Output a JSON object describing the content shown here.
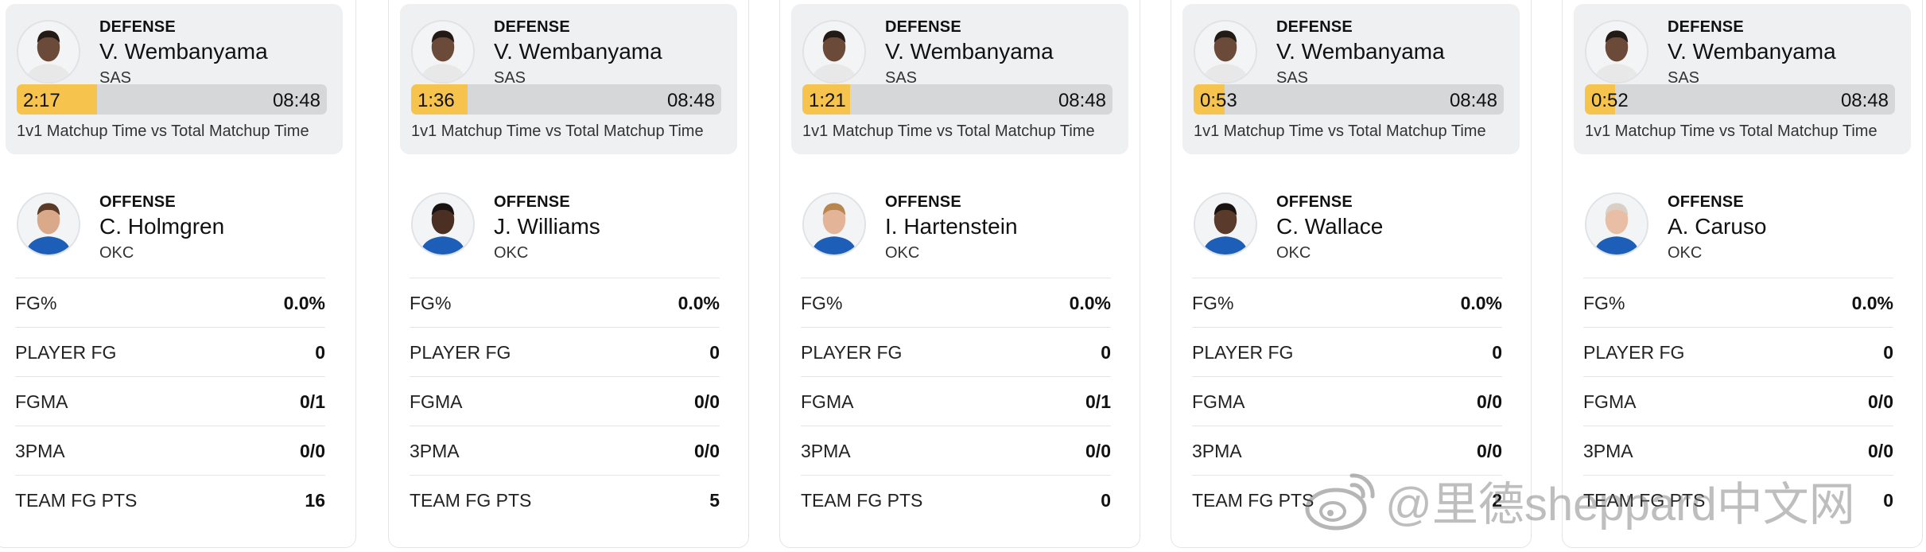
{
  "common": {
    "defense_label": "DEFENSE",
    "offense_label": "OFFENSE",
    "caption": "1v1 Matchup Time vs Total Matchup Time",
    "total_time": "08:48"
  },
  "cards": [
    {
      "defense": {
        "name": "V. Wembanyama",
        "team": "SAS",
        "matchup_time": "2:17",
        "fraction": 0.259
      },
      "offense": {
        "name": "C. Holmgren",
        "team": "OKC"
      },
      "stats": [
        {
          "label": "FG%",
          "value": "0.0%"
        },
        {
          "label": "PLAYER FG",
          "value": "0"
        },
        {
          "label": "FGMA",
          "value": "0/1"
        },
        {
          "label": "3PMA",
          "value": "0/0"
        },
        {
          "label": "TEAM FG PTS",
          "value": "16"
        }
      ]
    },
    {
      "defense": {
        "name": "V. Wembanyama",
        "team": "SAS",
        "matchup_time": "1:36",
        "fraction": 0.182
      },
      "offense": {
        "name": "J. Williams",
        "team": "OKC"
      },
      "stats": [
        {
          "label": "FG%",
          "value": "0.0%"
        },
        {
          "label": "PLAYER FG",
          "value": "0"
        },
        {
          "label": "FGMA",
          "value": "0/0"
        },
        {
          "label": "3PMA",
          "value": "0/0"
        },
        {
          "label": "TEAM FG PTS",
          "value": "5"
        }
      ]
    },
    {
      "defense": {
        "name": "V. Wembanyama",
        "team": "SAS",
        "matchup_time": "1:21",
        "fraction": 0.153
      },
      "offense": {
        "name": "I. Hartenstein",
        "team": "OKC"
      },
      "stats": [
        {
          "label": "FG%",
          "value": "0.0%"
        },
        {
          "label": "PLAYER FG",
          "value": "0"
        },
        {
          "label": "FGMA",
          "value": "0/1"
        },
        {
          "label": "3PMA",
          "value": "0/0"
        },
        {
          "label": "TEAM FG PTS",
          "value": "0"
        }
      ]
    },
    {
      "defense": {
        "name": "V. Wembanyama",
        "team": "SAS",
        "matchup_time": "0:53",
        "fraction": 0.1
      },
      "offense": {
        "name": "C. Wallace",
        "team": "OKC"
      },
      "stats": [
        {
          "label": "FG%",
          "value": "0.0%"
        },
        {
          "label": "PLAYER FG",
          "value": "0"
        },
        {
          "label": "FGMA",
          "value": "0/0"
        },
        {
          "label": "3PMA",
          "value": "0/0"
        },
        {
          "label": "TEAM FG PTS",
          "value": "2"
        }
      ]
    },
    {
      "defense": {
        "name": "V. Wembanyama",
        "team": "SAS",
        "matchup_time": "0:52",
        "fraction": 0.098
      },
      "offense": {
        "name": "A. Caruso",
        "team": "OKC"
      },
      "stats": [
        {
          "label": "FG%",
          "value": "0.0%"
        },
        {
          "label": "PLAYER FG",
          "value": "0"
        },
        {
          "label": "FGMA",
          "value": "0/0"
        },
        {
          "label": "3PMA",
          "value": "0/0"
        },
        {
          "label": "TEAM FG PTS",
          "value": "0"
        }
      ]
    }
  ],
  "watermark": {
    "text": "@里德sheppard中文网",
    "icon": "weibo-logo-icon"
  },
  "colors": {
    "bar_fill": "#f6c34d",
    "bar_track": "#d6d7d9",
    "defense_bg": "#eff0f2"
  }
}
